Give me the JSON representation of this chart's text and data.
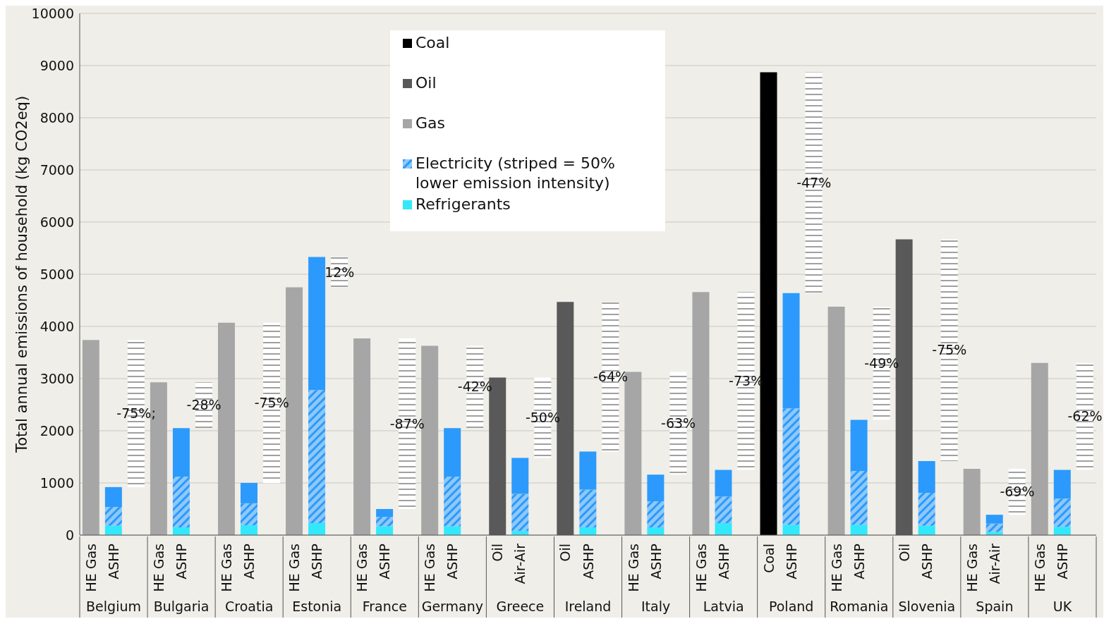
{
  "chart_data": {
    "type": "bar",
    "stacked": true,
    "ylabel": "Total annual emissions of household (kg CO2eq)",
    "categories": [
      "HE Gas",
      "ASHP",
      null,
      "HE Gas",
      "ASHP",
      null,
      "HE Gas",
      "ASHP",
      null,
      "HE Gas",
      "ASHP",
      null,
      "HE Gas",
      "ASHP",
      null,
      "HE Gas",
      "ASHP",
      null,
      "Oil",
      "Air-Air",
      null,
      "Oil",
      "ASHP",
      null,
      "HE Gas",
      "ASHP",
      null,
      "HE Gas",
      "ASHP",
      null,
      "Coal",
      "ASHP",
      null,
      "HE Gas",
      "ASHP",
      null,
      "Oil",
      "ASHP",
      null,
      "HE Gas",
      "Air-Air",
      null,
      "HE Gas",
      "ASHP",
      null
    ],
    "annotations": [
      "Belgium",
      "Bulgaria",
      "Croatia",
      "Estonia",
      "France",
      "Germany",
      "Greece",
      "Ireland",
      "Italy",
      "Latvia",
      "Poland",
      "Romania",
      "Slovenia",
      "Spain",
      "UK",
      "-75%;",
      "-28%",
      "-75%",
      "12%",
      "-87%",
      "-42%",
      "-50%",
      "-64%",
      "-63%",
      "-73%",
      "-47%",
      "-49%",
      "-75%",
      "-69%",
      "-62%"
    ],
    "series": [
      {
        "name": "Refrigerants",
        "color": "#33e8fb",
        "values": [
          null,
          180,
          null,
          null,
          150,
          null,
          null,
          190,
          null,
          null,
          230,
          null,
          null,
          170,
          null,
          null,
          170,
          null,
          null,
          80,
          null,
          null,
          150,
          null,
          null,
          150,
          null,
          null,
          230,
          null,
          null,
          200,
          null,
          null,
          200,
          null,
          null,
          180,
          null,
          null,
          60,
          null,
          null,
          160,
          null
        ]
      },
      {
        "name": "Electricity (striped = 50% lower emission intensity)",
        "color": "#8ec8f8",
        "values": [
          null,
          360,
          null,
          null,
          970,
          null,
          null,
          420,
          null,
          null,
          2550,
          null,
          null,
          180,
          null,
          null,
          950,
          null,
          null,
          710,
          null,
          null,
          720,
          null,
          null,
          500,
          null,
          null,
          510,
          null,
          null,
          2230,
          null,
          null,
          1030,
          null,
          null,
          630,
          null,
          null,
          160,
          null,
          null,
          540,
          null
        ]
      },
      {
        "color": "#2b9afc",
        "values": [
          null,
          380,
          null,
          null,
          930,
          null,
          null,
          390,
          null,
          null,
          2550,
          null,
          null,
          150,
          null,
          null,
          930,
          null,
          null,
          690,
          null,
          null,
          730,
          null,
          null,
          510,
          null,
          null,
          510,
          null,
          null,
          2210,
          null,
          null,
          980,
          null,
          null,
          610,
          null,
          null,
          170,
          null,
          null,
          550,
          null
        ]
      },
      {
        "name": "Gas",
        "color": "#a6a6a6",
        "values": [
          3740,
          null,
          null,
          2930,
          null,
          null,
          4070,
          null,
          null,
          4750,
          null,
          null,
          3770,
          null,
          null,
          3630,
          null,
          null,
          null,
          null,
          null,
          null,
          null,
          null,
          3130,
          null,
          null,
          4660,
          null,
          null,
          null,
          null,
          null,
          4380,
          null,
          null,
          null,
          null,
          null,
          1270,
          null,
          null,
          3300,
          null,
          null
        ]
      },
      {
        "name": "Oil",
        "color": "#595959",
        "values": [
          null,
          null,
          null,
          null,
          null,
          null,
          null,
          null,
          null,
          null,
          null,
          null,
          null,
          null,
          null,
          null,
          null,
          null,
          3020,
          null,
          null,
          4470,
          null,
          null,
          null,
          null,
          null,
          null,
          null,
          null,
          null,
          null,
          null,
          null,
          null,
          null,
          5670,
          null,
          null,
          null,
          null,
          null,
          null,
          null,
          null
        ]
      },
      {
        "name": "Coal",
        "color": "#000000",
        "values": [
          null,
          null,
          null,
          null,
          null,
          null,
          null,
          null,
          null,
          null,
          null,
          null,
          null,
          null,
          null,
          null,
          null,
          null,
          null,
          null,
          null,
          null,
          null,
          null,
          null,
          null,
          null,
          null,
          null,
          null,
          8870,
          null,
          null,
          null,
          null,
          null,
          null,
          null,
          null,
          null,
          null,
          null,
          null,
          null,
          null
        ]
      },
      {
        "color": "#ffffff",
        "base": [
          null,
          null,
          920,
          null,
          null,
          2050,
          null,
          null,
          1000,
          null,
          null,
          4750,
          null,
          null,
          500,
          null,
          null,
          2050,
          null,
          null,
          1480,
          null,
          null,
          1600,
          null,
          null,
          1160,
          null,
          null,
          1250,
          null,
          null,
          4640,
          null,
          null,
          2210,
          null,
          null,
          1420,
          null,
          null,
          390,
          null,
          null,
          1250
        ],
        "values": [
          null,
          null,
          2820,
          null,
          null,
          880,
          null,
          null,
          3070,
          null,
          null,
          580,
          null,
          null,
          3270,
          null,
          null,
          1580,
          null,
          null,
          1540,
          null,
          null,
          2870,
          null,
          null,
          1970,
          null,
          null,
          3410,
          null,
          null,
          4230,
          null,
          null,
          2170,
          null,
          null,
          4250,
          null,
          null,
          880,
          null,
          null,
          2050
        ]
      }
    ],
    "ylim": [
      0,
      10000
    ],
    "yticks": [
      0,
      1000,
      2000,
      3000,
      4000,
      5000,
      6000,
      7000,
      8000,
      9000,
      10000
    ],
    "grid": "y",
    "legend": "top"
  }
}
